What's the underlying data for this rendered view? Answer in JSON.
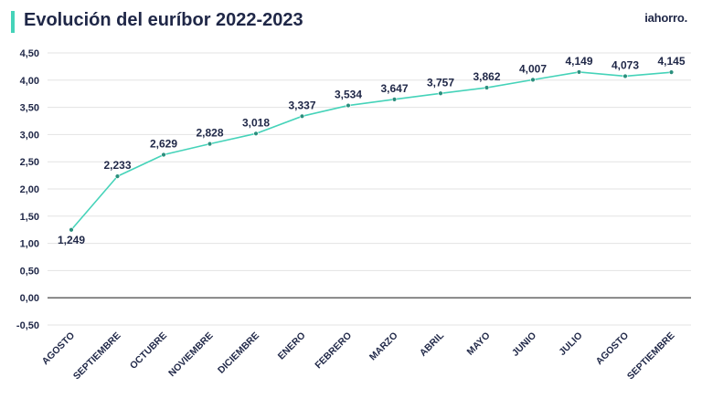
{
  "header": {
    "title": "Evolución del euríbor 2022-2023",
    "brand": "iahorro."
  },
  "colors": {
    "line": "#45d3b9",
    "marker": "#2a8f7d",
    "text": "#1f2747",
    "grid": "#e3e3e3",
    "zero_line": "#333333"
  },
  "chart_data": {
    "type": "line",
    "title": "Evolución del euríbor 2022-2023",
    "xlabel": "",
    "ylabel": "",
    "ylim": [
      -0.5,
      4.5
    ],
    "yticks": [
      4.5,
      4.0,
      3.5,
      3.0,
      2.5,
      2.0,
      1.5,
      1.0,
      0.5,
      0.0,
      -0.5
    ],
    "ytick_labels": [
      "4,50",
      "4,00",
      "3,50",
      "3,00",
      "2,50",
      "2,00",
      "1,50",
      "1,00",
      "0,50",
      "0,00",
      "-0,50"
    ],
    "categories": [
      "AGOSTO",
      "SEPTIEMBRE",
      "OCTUBRE",
      "NOVIEMBRE",
      "DICIEMBRE",
      "ENERO",
      "FEBRERO",
      "MARZO",
      "ABRIL",
      "MAYO",
      "JUNIO",
      "JULIO",
      "AGOSTO",
      "SEPTIEMBRE"
    ],
    "values": [
      1.249,
      2.233,
      2.629,
      2.828,
      3.018,
      3.337,
      3.534,
      3.647,
      3.757,
      3.862,
      4.007,
      4.149,
      4.073,
      4.145
    ],
    "value_labels": [
      "1,249",
      "2,233",
      "2,629",
      "2,828",
      "3,018",
      "3,337",
      "3,534",
      "3,647",
      "3,757",
      "3,862",
      "4,007",
      "4,149",
      "4,073",
      "4,145"
    ],
    "grid": true,
    "legend": "none"
  }
}
